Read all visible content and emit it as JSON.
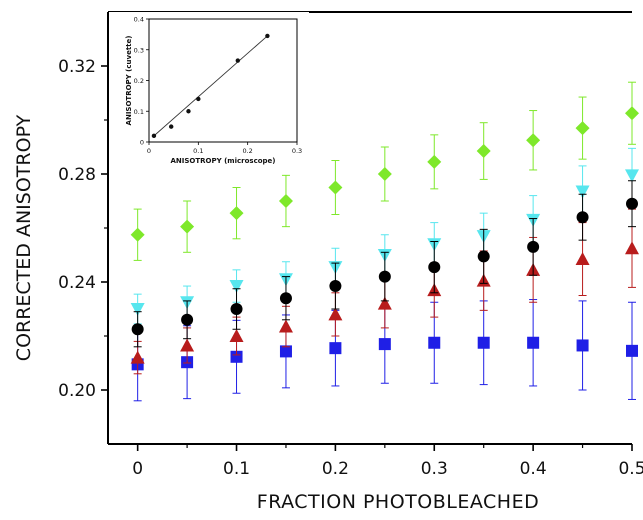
{
  "chart_data": [
    {
      "type": "scatter",
      "title": "",
      "xlabel": "FRACTION  PHOTOBLEACHED",
      "ylabel": "CORRECTED  ANISOTROPY",
      "xlim": [
        -0.03,
        0.5
      ],
      "ylim": [
        0.18,
        0.34
      ],
      "xticks": [
        0,
        0.1,
        0.2,
        0.3,
        0.4,
        0.5
      ],
      "xtick_labels": [
        "0",
        "0.1",
        "0.2",
        "0.3",
        "0.4",
        "0.5"
      ],
      "yticks": [
        0.2,
        0.24,
        0.28,
        0.32
      ],
      "ytick_labels": [
        "0.20",
        "0.24",
        "0.28",
        "0.32"
      ],
      "grid": false,
      "error_bars": true,
      "x": [
        0,
        0.05,
        0.1,
        0.15,
        0.2,
        0.25,
        0.3,
        0.35,
        0.4,
        0.45,
        0.5
      ],
      "series": [
        {
          "marker": "square",
          "color": "#1f1fe6",
          "values": [
            0.2095,
            0.2103,
            0.2123,
            0.2143,
            0.2155,
            0.217,
            0.2175,
            0.2175,
            0.2175,
            0.2165,
            0.2145
          ],
          "errors": [
            0.0135,
            0.0135,
            0.0135,
            0.0135,
            0.014,
            0.0145,
            0.015,
            0.0155,
            0.016,
            0.0165,
            0.018
          ]
        },
        {
          "marker": "triangle-up",
          "color": "#b81c1c",
          "values": [
            0.212,
            0.2165,
            0.22,
            0.2235,
            0.228,
            0.232,
            0.237,
            0.2405,
            0.2445,
            0.2485,
            0.2525
          ],
          "errors": [
            0.006,
            0.0065,
            0.007,
            0.0075,
            0.008,
            0.009,
            0.01,
            0.011,
            0.012,
            0.0135,
            0.0145
          ]
        },
        {
          "marker": "triangle-down",
          "color": "#57e6ee",
          "values": [
            0.23,
            0.2325,
            0.2385,
            0.241,
            0.2455,
            0.25,
            0.254,
            0.257,
            0.263,
            0.2735,
            0.2795
          ],
          "errors": [
            0.0055,
            0.006,
            0.006,
            0.0065,
            0.007,
            0.0075,
            0.008,
            0.0085,
            0.009,
            0.0095,
            0.01
          ]
        },
        {
          "marker": "circle",
          "color": "#000000",
          "values": [
            0.2225,
            0.226,
            0.23,
            0.234,
            0.2385,
            0.242,
            0.2455,
            0.2495,
            0.253,
            0.264,
            0.269
          ],
          "errors": [
            0.0065,
            0.007,
            0.0075,
            0.008,
            0.0085,
            0.009,
            0.0095,
            0.01,
            0.0105,
            0.0085,
            0.0085
          ]
        },
        {
          "marker": "diamond",
          "color": "#7ee82a",
          "values": [
            0.2575,
            0.2605,
            0.2655,
            0.27,
            0.275,
            0.28,
            0.2845,
            0.2885,
            0.2925,
            0.297,
            0.3025
          ],
          "errors": [
            0.0095,
            0.0095,
            0.0095,
            0.0095,
            0.01,
            0.01,
            0.01,
            0.0105,
            0.011,
            0.0115,
            0.0115
          ]
        }
      ]
    },
    {
      "type": "line",
      "title": "",
      "xlabel": "ANISOTROPY  (microscope)",
      "ylabel": "ANISOTROPY  (cuvette)",
      "xlim": [
        0,
        0.3
      ],
      "ylim": [
        0,
        0.4
      ],
      "xticks": [
        0,
        0.1,
        0.2,
        0.3
      ],
      "xtick_labels": [
        "0",
        "0.1",
        "0.2",
        "0.3"
      ],
      "yticks": [
        0,
        0.1,
        0.2,
        0.3,
        0.4
      ],
      "ytick_labels": [
        "0",
        "0.1",
        "0.2",
        "0.3",
        "0.4"
      ],
      "grid": false,
      "markers": true,
      "line_color": "#333333",
      "marker_color": "#111111",
      "x": [
        0.01,
        0.045,
        0.08,
        0.1,
        0.18,
        0.24
      ],
      "y": [
        0.02,
        0.05,
        0.1,
        0.14,
        0.265,
        0.345
      ]
    }
  ]
}
